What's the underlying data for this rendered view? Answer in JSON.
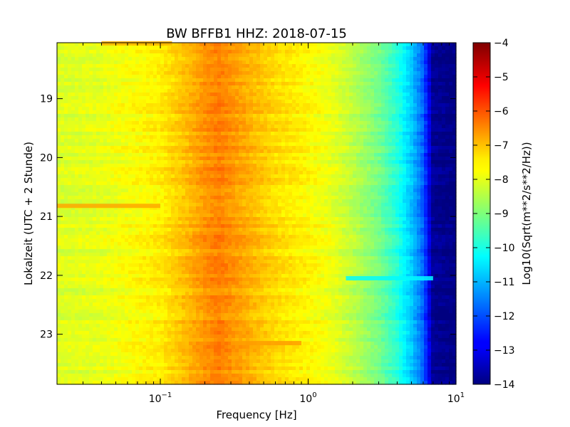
{
  "chart_data": {
    "type": "heatmap",
    "title": "BW BFFB1 HHZ: 2018-07-15",
    "xlabel": "Frequency [Hz]",
    "ylabel": "Lokalzeit (UTC + 2 Stunde)",
    "x_scale": "log",
    "xlim": [
      0.02,
      10
    ],
    "ylim_hours": [
      18.05,
      23.85
    ],
    "y_inverted": true,
    "x_ticks": [
      {
        "value": 0.1,
        "base": "10",
        "exp": "−1"
      },
      {
        "value": 1,
        "base": "10",
        "exp": "0"
      },
      {
        "value": 10,
        "base": "10",
        "exp": "1"
      }
    ],
    "y_ticks": [
      {
        "value": 19,
        "label": "19"
      },
      {
        "value": 20,
        "label": "20"
      },
      {
        "value": 21,
        "label": "21"
      },
      {
        "value": 22,
        "label": "22"
      },
      {
        "value": 23,
        "label": "23"
      }
    ],
    "colorbar": {
      "label": "Log10(Sqrt(m**2/s**2/Hz))",
      "range": [
        -14,
        -4
      ],
      "colormap": "jet",
      "ticks": [
        {
          "value": -4,
          "label": "−4"
        },
        {
          "value": -5,
          "label": "−5"
        },
        {
          "value": -6,
          "label": "−6"
        },
        {
          "value": -7,
          "label": "−7"
        },
        {
          "value": -8,
          "label": "−8"
        },
        {
          "value": -9,
          "label": "−9"
        },
        {
          "value": -10,
          "label": "−10"
        },
        {
          "value": -11,
          "label": "−11"
        },
        {
          "value": -12,
          "label": "−12"
        },
        {
          "value": -13,
          "label": "−13"
        },
        {
          "value": -14,
          "label": "−14"
        }
      ]
    },
    "spectrum_profile": {
      "freq_hz": [
        0.02,
        0.04,
        0.06,
        0.1,
        0.15,
        0.2,
        0.25,
        0.3,
        0.4,
        0.6,
        1.0,
        1.5,
        2.0,
        3.0,
        4.0,
        5.0,
        6.0,
        7.0,
        10.0
      ],
      "log10_psd": [
        -8.1,
        -8.0,
        -7.8,
        -7.6,
        -7.1,
        -6.7,
        -6.5,
        -6.7,
        -7.0,
        -7.4,
        -7.7,
        -8.0,
        -8.4,
        -9.1,
        -9.9,
        -10.8,
        -11.8,
        -13.8,
        -14.0
      ]
    },
    "features": [
      {
        "time_hours": 20.82,
        "freq_range_hz": [
          0.02,
          0.1
        ],
        "log10_psd": -6.9
      },
      {
        "time_hours": 18.06,
        "freq_range_hz": [
          0.04,
          0.12
        ],
        "log10_psd": -7.0
      },
      {
        "time_hours": 22.05,
        "freq_range_hz": [
          1.8,
          7.0
        ],
        "log10_psd": -10.3
      },
      {
        "time_hours": 23.15,
        "freq_range_hz": [
          0.3,
          0.9
        ],
        "log10_psd": -6.8
      }
    ]
  }
}
